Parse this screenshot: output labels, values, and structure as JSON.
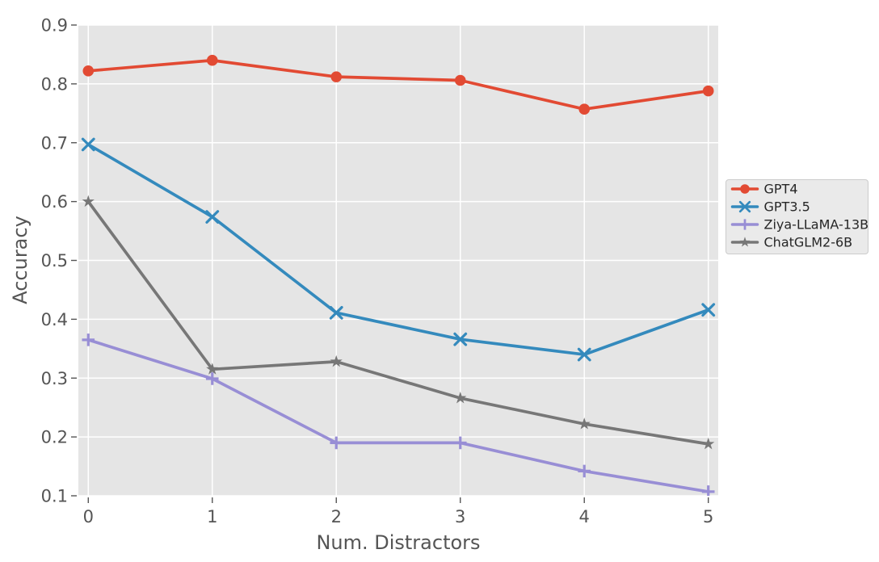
{
  "figure": {
    "background": "#ffffff",
    "plot_background": "#e5e5e5",
    "grid_color": "#ffffff",
    "tick_mark_color": "#555555",
    "tick_label_color": "#555555",
    "axis_label_color": "#555555",
    "legend": {
      "background": "#eaeaea",
      "border_color": "#cccccc",
      "text_color": "#262626"
    }
  },
  "chart_data": {
    "type": "line",
    "title": "",
    "xlabel": "Num. Distractors",
    "ylabel": "Accuracy",
    "x": [
      0,
      1,
      2,
      3,
      4,
      5
    ],
    "xticks": [
      "0",
      "1",
      "2",
      "3",
      "4",
      "5"
    ],
    "yticks": [
      "0.1",
      "0.2",
      "0.3",
      "0.4",
      "0.5",
      "0.6",
      "0.7",
      "0.8",
      "0.9"
    ],
    "xlim": [
      -0.08,
      5.08
    ],
    "ylim": [
      0.1,
      0.9
    ],
    "grid": true,
    "legend_position": "right-outside",
    "series": [
      {
        "name": "GPT4",
        "color": "#E24A33",
        "marker": "circle",
        "values": [
          0.822,
          0.84,
          0.812,
          0.806,
          0.757,
          0.788
        ]
      },
      {
        "name": "GPT3.5",
        "color": "#348ABD",
        "marker": "x",
        "values": [
          0.697,
          0.574,
          0.411,
          0.366,
          0.34,
          0.416
        ]
      },
      {
        "name": "Ziya-LLaMA-13B",
        "color": "#988ED5",
        "marker": "plus",
        "values": [
          0.365,
          0.299,
          0.19,
          0.19,
          0.142,
          0.107
        ]
      },
      {
        "name": "ChatGLM2-6B",
        "color": "#777777",
        "marker": "star",
        "values": [
          0.6,
          0.315,
          0.328,
          0.266,
          0.222,
          0.188
        ]
      }
    ]
  }
}
